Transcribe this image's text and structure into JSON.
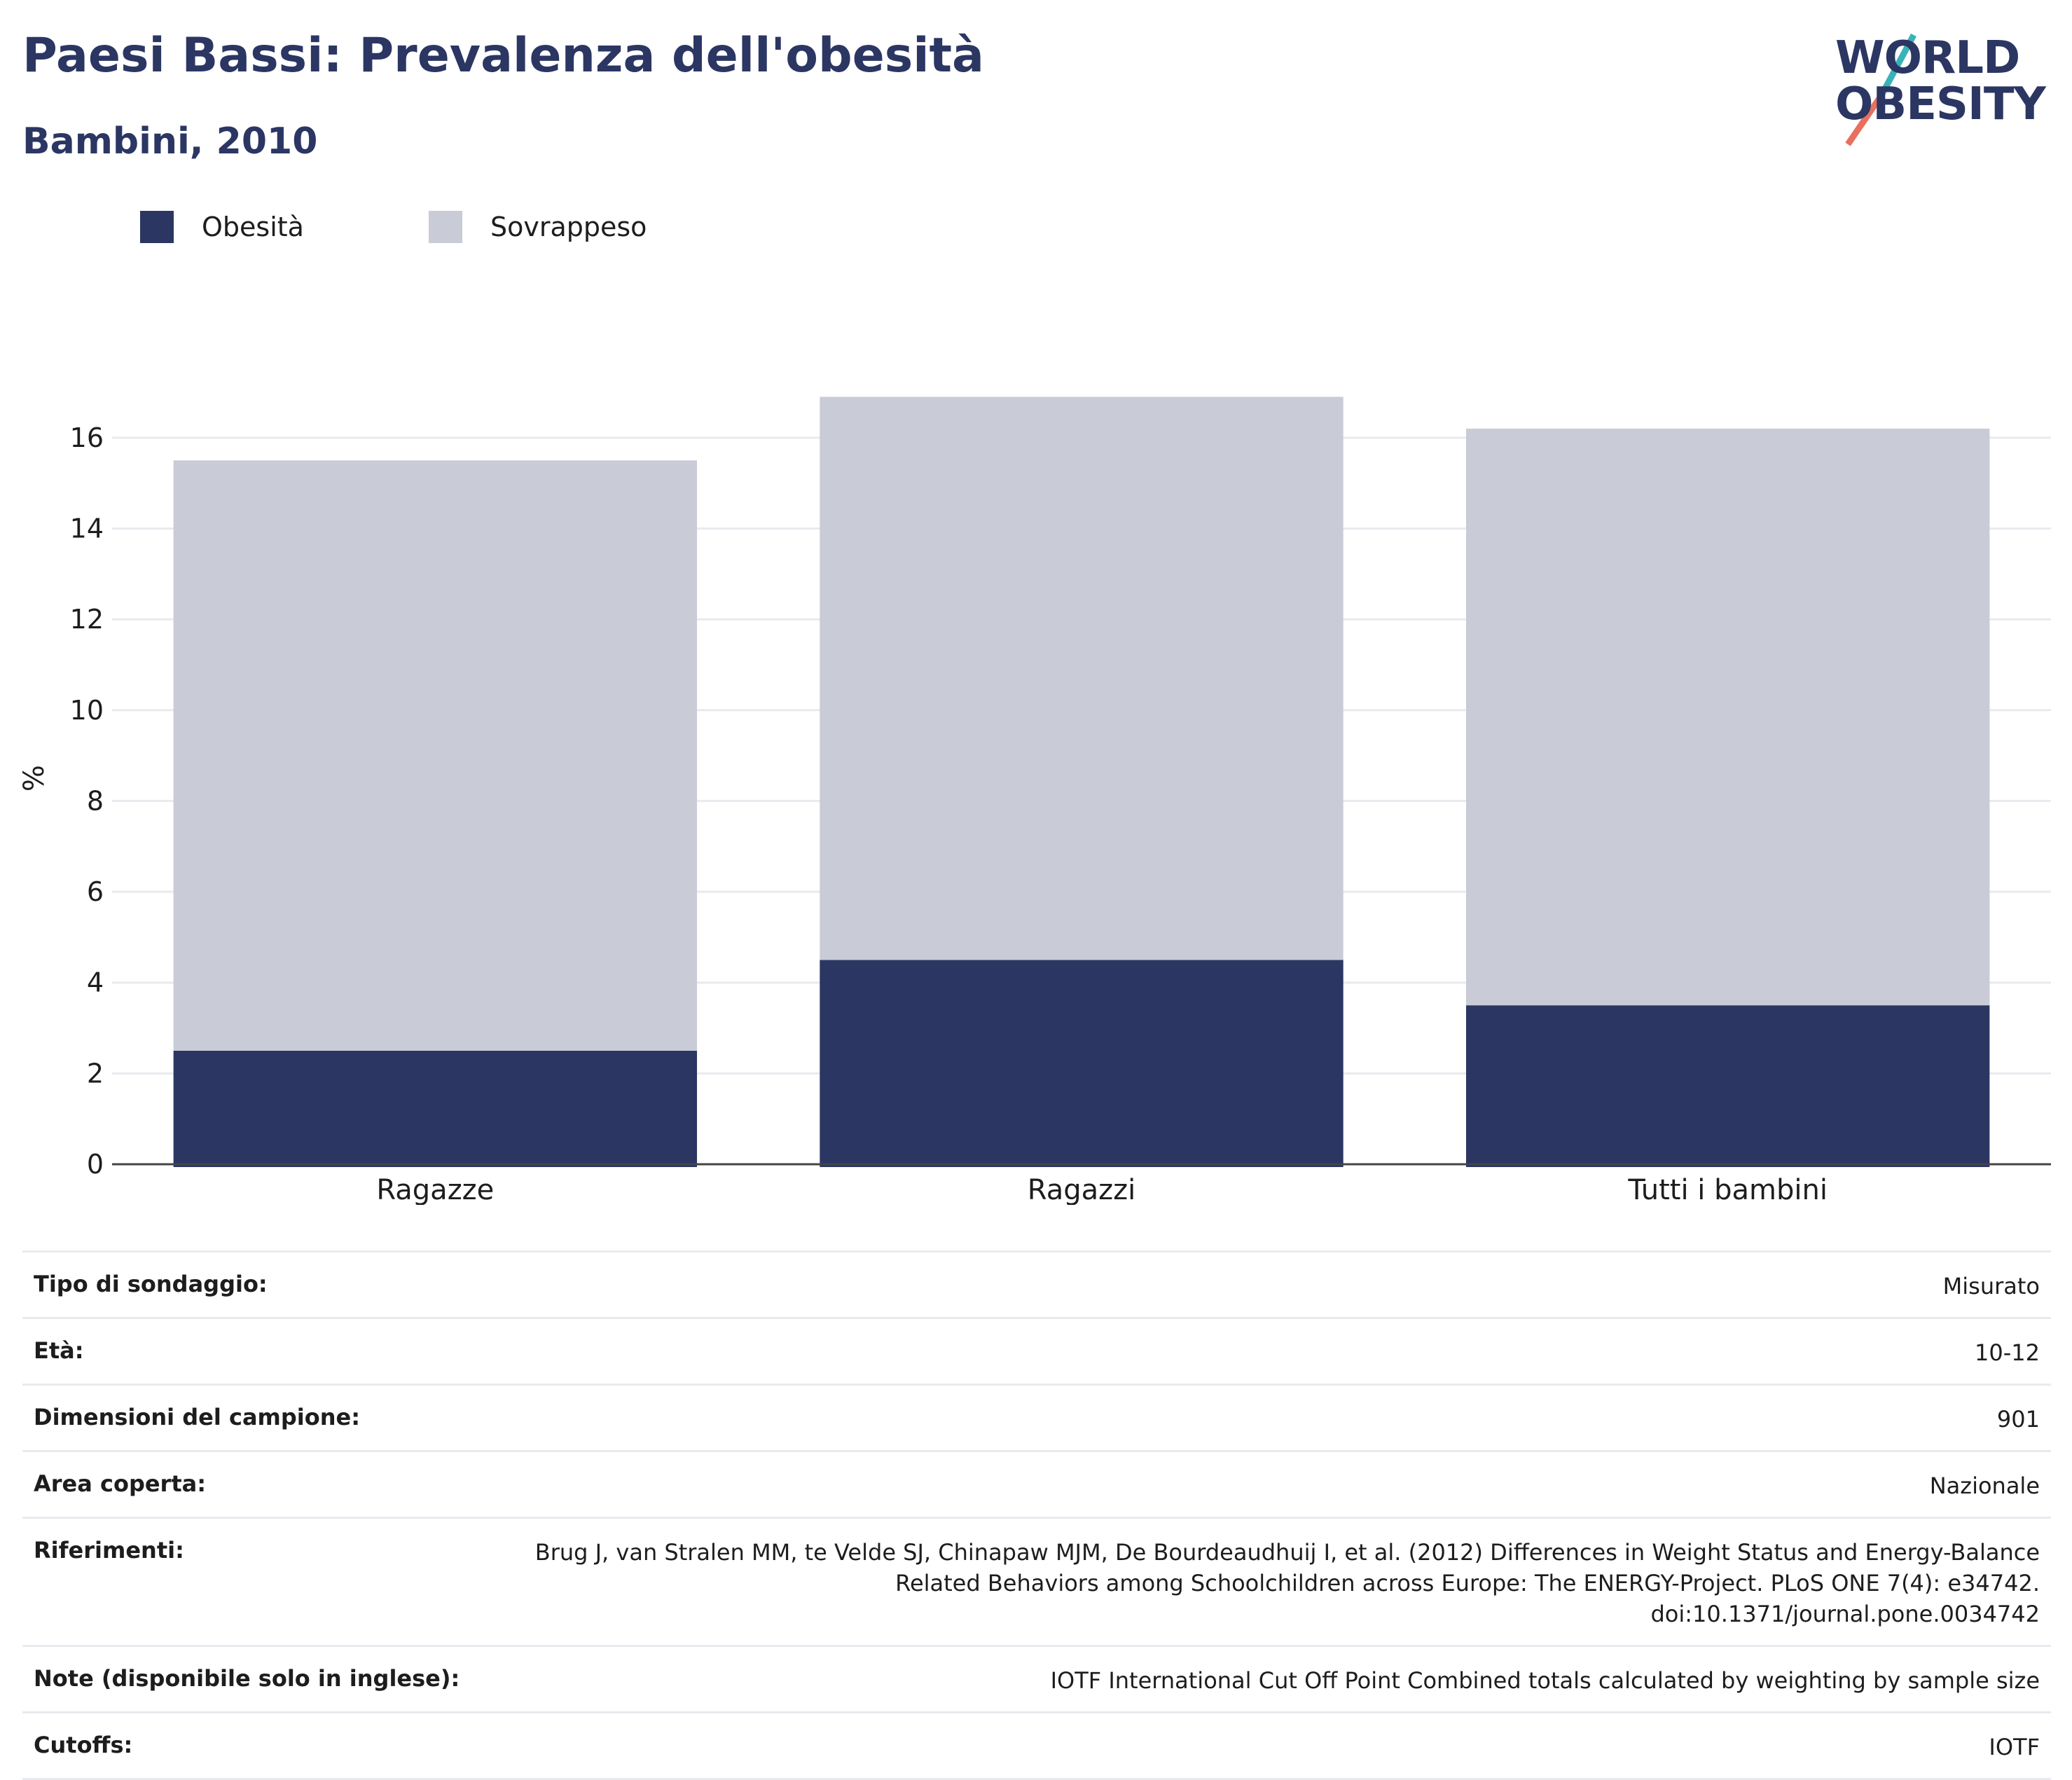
{
  "header": {
    "title": "Paesi Bassi: Prevalenza dell'obesità",
    "subtitle": "Bambini, 2010"
  },
  "logo": {
    "line1": "WORLD",
    "line2": "OBESITY",
    "colors": {
      "text": "#2b3663",
      "slash_top": "#3ab3b8",
      "slash_bottom": "#e8705f"
    }
  },
  "chart_data": {
    "type": "bar",
    "stacked": true,
    "categories": [
      "Ragazze",
      "Ragazzi",
      "Tutti i bambini"
    ],
    "series": [
      {
        "name": "Obesità",
        "color": "#2b3663",
        "values": [
          2.5,
          4.5,
          3.5
        ]
      },
      {
        "name": "Sovrappeso",
        "color": "#c9cbd6",
        "values": [
          13.0,
          12.4,
          12.7
        ]
      }
    ],
    "ylabel": "%",
    "xlabel": "",
    "ylim": [
      0,
      17
    ],
    "yticks": [
      0,
      2,
      4,
      6,
      8,
      10,
      12,
      14,
      16
    ],
    "grid": true,
    "legend": "top-left"
  },
  "info": [
    {
      "label": "Tipo di sondaggio:",
      "value": "Misurato"
    },
    {
      "label": "Età:",
      "value": "10-12"
    },
    {
      "label": "Dimensioni del campione:",
      "value": "901"
    },
    {
      "label": "Area coperta:",
      "value": "Nazionale"
    },
    {
      "label": "Riferimenti:",
      "value": [
        "Brug J, van Stralen MM, te Velde SJ, Chinapaw MJM, De Bourdeaudhuij I, et al. (2012) Differences in Weight Status and Energy-Balance",
        "Related Behaviors among Schoolchildren across Europe: The ENERGY-Project. PLoS ONE 7(4): e34742.",
        "doi:10.1371/journal.pone.0034742"
      ]
    },
    {
      "label": "Note (disponibile solo in inglese):",
      "value": "IOTF International Cut Off Point Combined totals calculated by weighting by sample size"
    },
    {
      "label": "Cutoffs:",
      "value": "IOTF"
    }
  ]
}
